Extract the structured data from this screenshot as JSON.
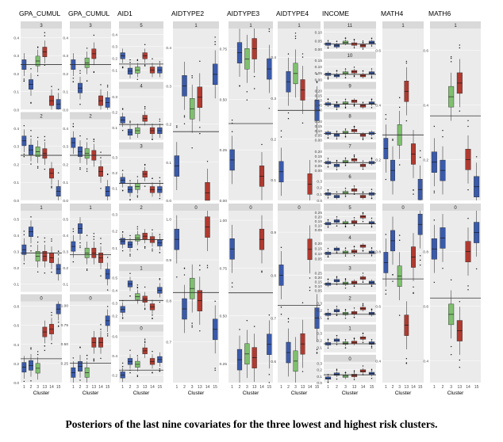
{
  "caption": "Posteriors of the last nine covariates for the three lowest and highest risk clusters.",
  "colors": {
    "red": "#b03a30",
    "green": "#7fbf6f",
    "blue": "#3a5aaa",
    "strip": "#d9d9d9",
    "panel": "#ebebeb",
    "hline": "#333333"
  },
  "chart_data": {
    "type": "boxplot",
    "x_categories": [
      "1",
      "2",
      "3",
      "13",
      "14",
      "15"
    ],
    "xlabel": "Cluster",
    "series_colors": [
      "blue",
      "blue",
      "green",
      "red",
      "red",
      "blue"
    ],
    "columns": [
      {
        "title": "GPA_CUMUL",
        "panels": [
          {
            "strip": "3",
            "ticks": [
              "0.4",
              "0.3",
              "0.2",
              "0.1",
              "0.0"
            ],
            "ylim": [
              0,
              0.45
            ],
            "hline": 0.25,
            "medians": [
              0.25,
              0.14,
              0.27,
              0.32,
              0.05,
              0.03
            ]
          },
          {
            "strip": "2",
            "ticks": [
              "0.4",
              "0.3",
              "0.2",
              "0.1",
              "0.0"
            ],
            "ylim": [
              0,
              0.45
            ],
            "hline": 0.25,
            "medians": [
              0.33,
              0.28,
              0.27,
              0.26,
              0.15,
              0.05
            ]
          },
          {
            "strip": "1",
            "ticks": [
              "0.5",
              "0.4",
              "0.3",
              "0.2",
              "0.1"
            ],
            "ylim": [
              0.05,
              0.55
            ],
            "hline": 0.29,
            "medians": [
              0.31,
              0.42,
              0.27,
              0.27,
              0.26,
              0.19
            ]
          },
          {
            "strip": "0",
            "ticks": [
              "0.8",
              "0.6",
              "0.4",
              "0.2",
              "0.0"
            ],
            "ylim": [
              0,
              0.85
            ],
            "hline": 0.25,
            "medians": [
              0.16,
              0.18,
              0.15,
              0.53,
              0.56,
              0.77
            ]
          }
        ]
      },
      {
        "title": "GPA_CUMUL",
        "panels": [
          {
            "strip": "3",
            "ticks": [
              "0.4",
              "0.3",
              "0.2",
              "0.1",
              "0.0"
            ],
            "ylim": [
              0,
              0.45
            ],
            "hline": 0.25,
            "medians": [
              0.25,
              0.12,
              0.26,
              0.31,
              0.05,
              0.04
            ]
          },
          {
            "strip": "2",
            "ticks": [
              "0.4",
              "0.3",
              "0.2",
              "0.1",
              "0.0"
            ],
            "ylim": [
              0,
              0.45
            ],
            "hline": 0.25,
            "medians": [
              0.32,
              0.27,
              0.26,
              0.25,
              0.16,
              0.05
            ]
          },
          {
            "strip": "1",
            "ticks": [
              "0.5",
              "0.4",
              "0.3",
              "0.2",
              "0.1"
            ],
            "ylim": [
              0.05,
              0.55
            ],
            "hline": 0.28,
            "medians": [
              0.33,
              0.44,
              0.29,
              0.29,
              0.26,
              0.16
            ]
          },
          {
            "strip": "0",
            "ticks": [
              "1.00",
              "0.75",
              "0.50",
              "0.25"
            ],
            "ylim": [
              0,
              1.05
            ],
            "hline": 0.25,
            "medians": [
              0.13,
              0.21,
              0.13,
              0.52,
              0.52,
              0.8
            ]
          }
        ]
      },
      {
        "title": "AID1",
        "panels": [
          {
            "strip": "5",
            "ticks": [
              "0.4",
              "0.3",
              "0.2",
              "0.1"
            ],
            "ylim": [
              0.02,
              0.45
            ],
            "hline": 0.15,
            "medians": [
              0.22,
              0.09,
              0.1,
              0.22,
              0.1,
              0.1
            ]
          },
          {
            "strip": "4",
            "ticks": [
              "0.3",
              "0.2",
              "0.1"
            ],
            "ylim": [
              0.02,
              0.35
            ],
            "hline": 0.12,
            "medians": [
              0.15,
              0.07,
              0.08,
              0.16,
              0.08,
              0.08
            ]
          },
          {
            "strip": "3",
            "ticks": [
              "0.3",
              "0.2",
              "0.1"
            ],
            "ylim": [
              0.02,
              0.35
            ],
            "hline": 0.13,
            "medians": [
              0.15,
              0.09,
              0.11,
              0.19,
              0.09,
              0.09
            ]
          },
          {
            "strip": "2",
            "ticks": [
              "0.3",
              "0.2",
              "0.1"
            ],
            "ylim": [
              0.02,
              0.32
            ],
            "hline": 0.15,
            "medians": [
              0.14,
              0.12,
              0.16,
              0.17,
              0.15,
              0.13
            ]
          },
          {
            "strip": "1",
            "ticks": [
              "0.5",
              "0.4",
              "0.3",
              "0.2"
            ],
            "ylim": [
              0.15,
              0.55
            ],
            "hline": 0.32,
            "medians": [
              0.25,
              0.45,
              0.35,
              0.33,
              0.27,
              0.4
            ]
          },
          {
            "strip": "0",
            "ticks": [
              "0.6",
              "0.4",
              "0.2"
            ],
            "ylim": [
              0.12,
              0.65
            ],
            "hline": 0.25,
            "medians": [
              0.2,
              0.34,
              0.31,
              0.45,
              0.34,
              0.36
            ]
          }
        ]
      },
      {
        "title": "AIDTYPE2",
        "panels": [
          {
            "strip": "1",
            "ticks": [
              "0.4",
              "0.3",
              "0.2",
              "0.1",
              "0.0"
            ],
            "ylim": [
              0,
              0.45
            ],
            "hline": 0.18,
            "medians": [
              0.09,
              0.3,
              0.24,
              0.27,
              0.02,
              0.33
            ]
          },
          {
            "strip": "0",
            "ticks": [
              "1.0",
              "0.9",
              "0.8",
              "0.7"
            ],
            "ylim": [
              0.6,
              1.02
            ],
            "hline": 0.82,
            "medians": [
              0.95,
              0.78,
              0.83,
              0.8,
              0.98,
              0.73
            ]
          }
        ]
      },
      {
        "title": "AIDTYPE3",
        "panels": [
          {
            "strip": "1",
            "ticks": [
              "0.75",
              "0.50",
              "0.25",
              "0.00"
            ],
            "ylim": [
              0,
              0.85
            ],
            "hline": 0.38,
            "medians": [
              0.2,
              0.73,
              0.7,
              0.75,
              0.12,
              0.65
            ]
          },
          {
            "strip": "0",
            "ticks": [
              "1.00",
              "0.75",
              "0.50",
              "0.25"
            ],
            "ylim": [
              0.15,
              1.05
            ],
            "hline": 0.62,
            "medians": [
              0.85,
              0.27,
              0.3,
              0.28,
              0.9,
              0.35
            ]
          }
        ]
      },
      {
        "title": "AIDTYPE4",
        "panels": [
          {
            "strip": "1",
            "ticks": [
              "0.4",
              "0.3",
              "0.2",
              "0.1"
            ],
            "ylim": [
              0.05,
              0.47
            ],
            "hline": 0.27,
            "medians": [
              0.12,
              0.34,
              0.36,
              0.32,
              0.09,
              0.27
            ]
          },
          {
            "strip": "0",
            "ticks": [
              "0.9",
              "0.8",
              "0.7",
              "0.6"
            ],
            "ylim": [
              0.55,
              0.95
            ],
            "hline": 0.73,
            "medians": [
              0.8,
              0.62,
              0.6,
              0.64,
              0.86,
              0.7
            ]
          }
        ]
      },
      {
        "title": "INCOME",
        "panels": [
          {
            "strip": "11",
            "ticks": [
              "0.10",
              "0.05",
              "0.00"
            ],
            "ylim": [
              0,
              0.12
            ],
            "hline": 0.03,
            "medians": [
              0.03,
              0.02,
              0.04,
              0.03,
              0.02,
              0.04
            ]
          },
          {
            "strip": "10",
            "ticks": [
              "0.15",
              "0.10",
              "0.05",
              "0.00"
            ],
            "ylim": [
              0,
              0.16
            ],
            "hline": 0.04,
            "medians": [
              0.04,
              0.03,
              0.05,
              0.06,
              0.03,
              0.05
            ]
          },
          {
            "strip": "9",
            "ticks": [
              "0.20",
              "0.15",
              "0.10",
              "0.05",
              "0.00"
            ],
            "ylim": [
              0,
              0.22
            ],
            "hline": 0.06,
            "medians": [
              0.06,
              0.04,
              0.07,
              0.09,
              0.04,
              0.07
            ]
          },
          {
            "strip": "8",
            "ticks": [
              "0.20",
              "0.15",
              "0.10",
              "0.05",
              "0.00"
            ],
            "ylim": [
              0,
              0.22
            ],
            "hline": 0.07,
            "medians": [
              0.07,
              0.05,
              0.08,
              0.1,
              0.05,
              0.07
            ]
          },
          {
            "strip": "7",
            "ticks": [
              "0.20",
              "0.15",
              "0.10",
              "0.05",
              "0.00"
            ],
            "ylim": [
              0,
              0.22
            ],
            "hline": 0.08,
            "medians": [
              0.08,
              0.05,
              0.09,
              0.11,
              0.05,
              0.08
            ]
          },
          {
            "strip": "6",
            "ticks": [
              "0.3",
              "0.2",
              "0.1",
              "0.0"
            ],
            "ylim": [
              0,
              0.32
            ],
            "hline": 0.1,
            "medians": [
              0.1,
              0.06,
              0.12,
              0.16,
              0.06,
              0.1
            ]
          },
          {
            "strip": "5",
            "ticks": [
              "0.25",
              "0.20",
              "0.15",
              "0.10",
              "0.05"
            ],
            "ylim": [
              0.03,
              0.27
            ],
            "hline": 0.12,
            "medians": [
              0.12,
              0.15,
              0.13,
              0.14,
              0.2,
              0.13
            ]
          },
          {
            "strip": "4",
            "ticks": [
              "0.20",
              "0.15",
              "0.10",
              "0.05"
            ],
            "ylim": [
              0.02,
              0.22
            ],
            "hline": 0.1,
            "medians": [
              0.1,
              0.14,
              0.11,
              0.12,
              0.17,
              0.11
            ]
          },
          {
            "strip": "3",
            "ticks": [
              "0.25",
              "0.20",
              "0.15",
              "0.10",
              "0.05"
            ],
            "ylim": [
              0.03,
              0.27
            ],
            "hline": 0.12,
            "medians": [
              0.12,
              0.16,
              0.13,
              0.14,
              0.19,
              0.14
            ]
          },
          {
            "strip": "2",
            "ticks": [
              "0.3",
              "0.2",
              "0.1"
            ],
            "ylim": [
              0.03,
              0.32
            ],
            "hline": 0.14,
            "medians": [
              0.14,
              0.19,
              0.15,
              0.16,
              0.22,
              0.15
            ]
          },
          {
            "strip": "1",
            "ticks": [
              "0.3",
              "0.2",
              "0.1"
            ],
            "ylim": [
              0.03,
              0.32
            ],
            "hline": 0.15,
            "medians": [
              0.15,
              0.2,
              0.16,
              0.17,
              0.23,
              0.16
            ]
          },
          {
            "strip": "0",
            "ticks": [
              "0.3",
              "0.2",
              "0.1",
              "0.0"
            ],
            "ylim": [
              0,
              0.32
            ],
            "hline": 0.12,
            "medians": [
              0.07,
              0.13,
              0.1,
              0.11,
              0.18,
              0.14
            ]
          }
        ]
      },
      {
        "title": "MATH4",
        "panels": [
          {
            "strip": "1",
            "ticks": [
              "0.6",
              "0.4",
              "0.2"
            ],
            "ylim": [
              0.05,
              0.68
            ],
            "hline": 0.29,
            "medians": [
              0.24,
              0.16,
              0.29,
              0.45,
              0.22,
              0.09
            ]
          },
          {
            "strip": "0",
            "ticks": [
              "0.8",
              "0.6",
              "0.4"
            ],
            "ylim": [
              0.32,
              0.95
            ],
            "hline": 0.7,
            "medians": [
              0.76,
              0.84,
              0.71,
              0.53,
              0.78,
              0.9
            ]
          }
        ]
      },
      {
        "title": "MATH6",
        "panels": [
          {
            "strip": "1",
            "ticks": [
              "0.6",
              "0.4",
              "0.2"
            ],
            "ylim": [
              0.05,
              0.68
            ],
            "hline": 0.36,
            "medians": [
              0.19,
              0.16,
              0.43,
              0.48,
              0.2,
              0.1
            ]
          },
          {
            "strip": "0",
            "ticks": [
              "0.8",
              "0.6",
              "0.4"
            ],
            "ylim": [
              0.32,
              0.95
            ],
            "hline": 0.63,
            "medians": [
              0.81,
              0.85,
              0.57,
              0.51,
              0.8,
              0.87
            ]
          }
        ]
      }
    ]
  }
}
